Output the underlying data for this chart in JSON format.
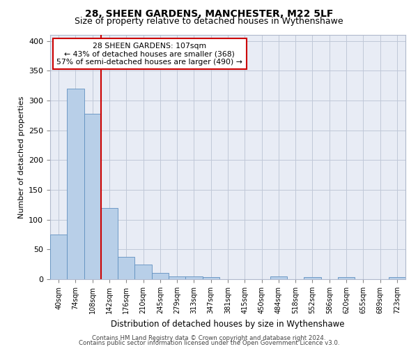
{
  "title1": "28, SHEEN GARDENS, MANCHESTER, M22 5LF",
  "title2": "Size of property relative to detached houses in Wythenshawe",
  "xlabel": "Distribution of detached houses by size in Wythenshawe",
  "ylabel": "Number of detached properties",
  "categories": [
    "40sqm",
    "74sqm",
    "108sqm",
    "142sqm",
    "176sqm",
    "210sqm",
    "245sqm",
    "279sqm",
    "313sqm",
    "347sqm",
    "381sqm",
    "415sqm",
    "450sqm",
    "484sqm",
    "518sqm",
    "552sqm",
    "586sqm",
    "620sqm",
    "655sqm",
    "689sqm",
    "723sqm"
  ],
  "values": [
    75,
    320,
    278,
    120,
    38,
    25,
    10,
    5,
    5,
    3,
    0,
    0,
    0,
    5,
    0,
    4,
    0,
    3,
    0,
    0,
    3
  ],
  "bar_color": "#b8cfe8",
  "bar_edge_color": "#6090c0",
  "vline_color": "#cc0000",
  "vline_x_index": 2,
  "annotation_line1": "28 SHEEN GARDENS: 107sqm",
  "annotation_line2": "← 43% of detached houses are smaller (368)",
  "annotation_line3": "57% of semi-detached houses are larger (490) →",
  "annotation_box_edgecolor": "#cc0000",
  "ylim": [
    0,
    410
  ],
  "yticks": [
    0,
    50,
    100,
    150,
    200,
    250,
    300,
    350,
    400
  ],
  "grid_color": "#c0c8d8",
  "bg_color": "#e8ecf5",
  "title1_fontsize": 10,
  "title2_fontsize": 9,
  "footer1": "Contains HM Land Registry data © Crown copyright and database right 2024.",
  "footer2": "Contains public sector information licensed under the Open Government Licence v3.0."
}
